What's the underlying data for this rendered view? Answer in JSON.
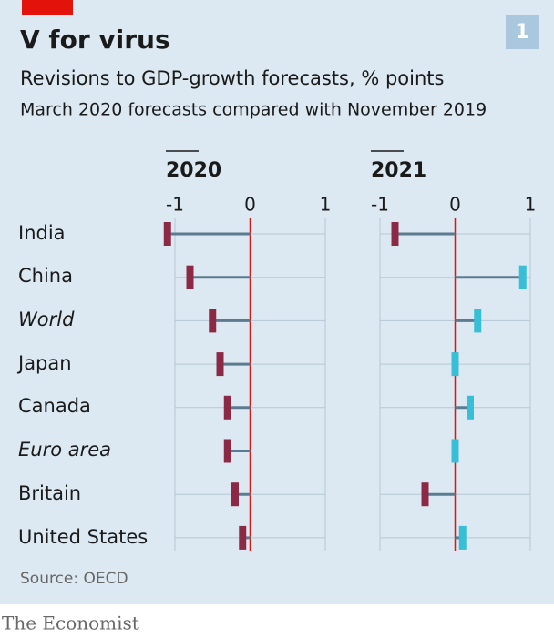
{
  "header": {
    "title": "V for virus",
    "badge": "1",
    "subtitle": "Revisions to GDP-growth forecasts, % points",
    "description": "March 2020 forecasts compared with November 2019"
  },
  "chart_data": {
    "type": "dumbbell",
    "categories": [
      "India",
      "China",
      "World",
      "Japan",
      "Canada",
      "Euro area",
      "Britain",
      "United States"
    ],
    "series": [
      {
        "name": "2020",
        "values": [
          -1.1,
          -0.8,
          -0.5,
          -0.4,
          -0.3,
          -0.3,
          -0.2,
          -0.1
        ]
      },
      {
        "name": "2021",
        "values": [
          -0.8,
          0.9,
          0.3,
          0,
          0.2,
          0,
          -0.4,
          0.1
        ]
      }
    ],
    "xlim": [
      -1,
      1
    ],
    "xticks": [
      -1,
      0,
      1
    ],
    "negative_color": "#8c2a45",
    "positive_color": "#36bfd6",
    "zero_color": "#e3120b",
    "grid": true
  },
  "footer": {
    "source": "Source: OECD",
    "brand": "The Economist"
  }
}
